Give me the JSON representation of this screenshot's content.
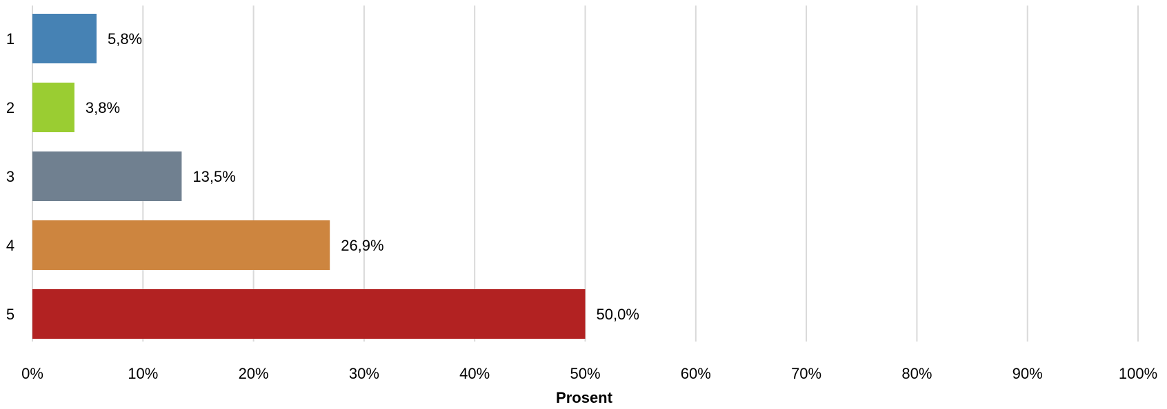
{
  "chart_data": {
    "type": "bar",
    "orientation": "horizontal",
    "categories": [
      "1",
      "2",
      "3",
      "4",
      "5"
    ],
    "values": [
      5.8,
      3.8,
      13.5,
      26.9,
      50.0
    ],
    "value_labels": [
      "5,8%",
      "3,8%",
      "13,5%",
      "26,9%",
      "50,0%"
    ],
    "colors": [
      "#4682B4",
      "#9ACD32",
      "#708090",
      "#CD853F",
      "#B22222"
    ],
    "xlabel": "Prosent",
    "ylabel": "",
    "title": "",
    "xlim": [
      0,
      100
    ],
    "x_ticks": [
      0,
      10,
      20,
      30,
      40,
      50,
      60,
      70,
      80,
      90,
      100
    ],
    "x_tick_labels": [
      "0%",
      "10%",
      "20%",
      "30%",
      "40%",
      "50%",
      "60%",
      "70%",
      "80%",
      "90%",
      "100%"
    ],
    "grid": "vertical",
    "legend": "none"
  }
}
